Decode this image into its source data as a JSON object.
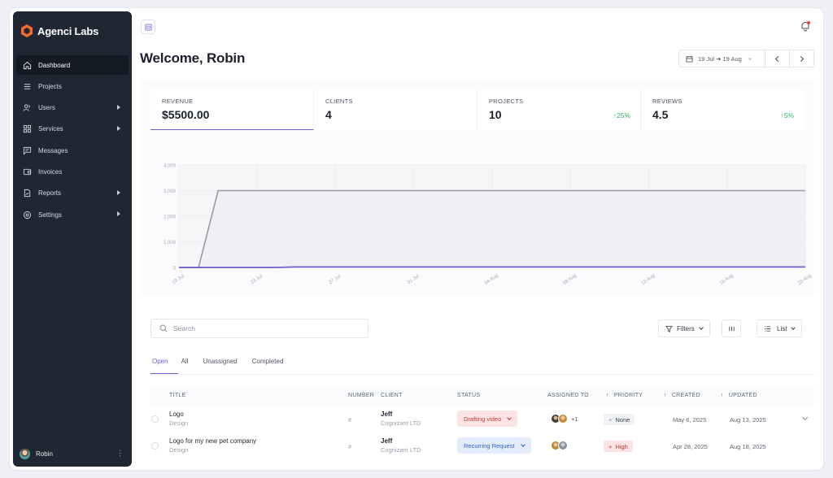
{
  "brand": {
    "name": "Agenci Labs",
    "accent": "#f26b2c"
  },
  "sidebar": {
    "items": [
      {
        "label": "Dashboard",
        "icon": "home-icon",
        "active": true,
        "has_submenu": false
      },
      {
        "label": "Projects",
        "icon": "list-icon",
        "active": false,
        "has_submenu": false
      },
      {
        "label": "Users",
        "icon": "users-icon",
        "active": false,
        "has_submenu": true
      },
      {
        "label": "Services",
        "icon": "grid-icon",
        "active": false,
        "has_submenu": true
      },
      {
        "label": "Messages",
        "icon": "message-icon",
        "active": false,
        "has_submenu": false
      },
      {
        "label": "Invoices",
        "icon": "wallet-icon",
        "active": false,
        "has_submenu": false
      },
      {
        "label": "Reports",
        "icon": "report-icon",
        "active": false,
        "has_submenu": true
      },
      {
        "label": "Settings",
        "icon": "settings-icon",
        "active": false,
        "has_submenu": true
      }
    ],
    "user": {
      "name": "Robin"
    }
  },
  "header": {
    "welcome": "Welcome, Robin",
    "date_range": "19 Jul ➔ 19 Aug",
    "clear": "×"
  },
  "stats": [
    {
      "label": "REVENUE",
      "value": "$5500.00",
      "change": ""
    },
    {
      "label": "CLIENTS",
      "value": "4",
      "change": ""
    },
    {
      "label": "PROJECTS",
      "value": "10",
      "change": "25%"
    },
    {
      "label": "REVIEWS",
      "value": "4.5",
      "change": "5%"
    }
  ],
  "chart_data": {
    "type": "line",
    "x": [
      "19 Jul",
      "20 Jul",
      "21 Jul",
      "22 Jul",
      "23 Jul",
      "24 Jul",
      "25 Jul",
      "26 Jul",
      "27 Jul",
      "28 Jul",
      "29 Jul",
      "30 Jul",
      "31 Jul",
      "01 Aug",
      "02 Aug",
      "03 Aug",
      "04 Aug",
      "05 Aug",
      "06 Aug",
      "07 Aug",
      "08 Aug",
      "09 Aug",
      "10 Aug",
      "11 Aug",
      "12 Aug",
      "13 Aug",
      "14 Aug",
      "15 Aug",
      "16 Aug",
      "17 Aug",
      "18 Aug",
      "19 Aug",
      "20 Aug"
    ],
    "x_ticks": [
      "19 Jul",
      "23 Jul",
      "27 Jul",
      "31 Jul",
      "04 Aug",
      "08 Aug",
      "12 Aug",
      "16 Aug",
      "20 Aug"
    ],
    "y_ticks": [
      "4,000",
      "3,000",
      "2,000",
      "1,000",
      "0"
    ],
    "ylim": [
      0,
      4000
    ],
    "series": [
      {
        "color": "#9a9aa0",
        "values": [
          0,
          0,
          3000,
          3000,
          3000,
          3000,
          3000,
          3000,
          3000,
          3000,
          3000,
          3000,
          3000,
          3000,
          3000,
          3000,
          3000,
          3000,
          3000,
          3000,
          3000,
          3000,
          3000,
          3000,
          3000,
          3000,
          3000,
          3000,
          3000,
          3000,
          3000,
          3000,
          3000
        ]
      },
      {
        "color": "#6b5fd0",
        "values": [
          0,
          0,
          0,
          0,
          0,
          0,
          20,
          20,
          20,
          20,
          20,
          20,
          20,
          20,
          20,
          20,
          20,
          20,
          20,
          20,
          20,
          20,
          20,
          20,
          20,
          20,
          20,
          20,
          20,
          20,
          20,
          20,
          20
        ]
      }
    ],
    "grid": true
  },
  "table": {
    "search_placeholder": "Search",
    "filters_label": "Filters",
    "view_label": "List",
    "tabs": [
      "Open",
      "All",
      "Unassigned",
      "Completed"
    ],
    "columns": {
      "title": "TITLE",
      "number": "NUMBER",
      "client": "CLIENT",
      "status": "STATUS",
      "assigned": "ASSIGNED TO",
      "priority": "PRIORITY",
      "created": "CREATED",
      "updated": "UPDATED"
    },
    "rows": [
      {
        "title": "Logo",
        "category": "Design",
        "number": "#",
        "client": "Jeff",
        "company": "Cognizant LTD",
        "status": "Drafting video",
        "assigned_extra": "+1",
        "priority": "None",
        "created": "May 6, 2025",
        "updated": "Aug 13, 2025"
      },
      {
        "title": "Logo for my new pet company",
        "category": "Design",
        "number": "#",
        "client": "Jeff",
        "company": "Cognizant LTD",
        "status": "Recurring Request",
        "assigned_extra": "",
        "priority": "High",
        "created": "Apr 28, 2025",
        "updated": "Aug 18, 2025"
      }
    ]
  }
}
